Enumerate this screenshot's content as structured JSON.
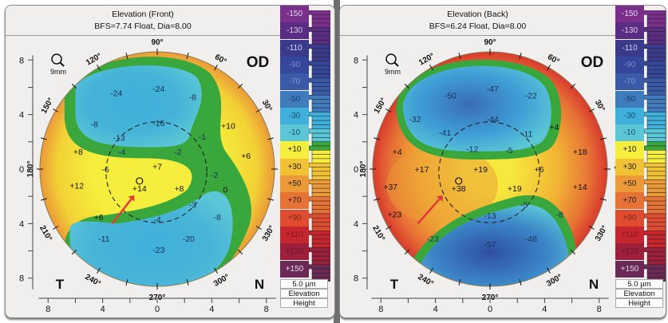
{
  "panels": [
    {
      "title": "Elevation (Front)",
      "subtitle": "BFS=7.74 Float, Dia=8.00",
      "eye": "OD",
      "zoom_label": "9mm",
      "side_left": "T",
      "side_right": "N",
      "angle_labels": [
        "90°",
        "60°",
        "30°",
        "0°",
        "330°",
        "300°",
        "270°",
        "240°",
        "210°",
        "180°",
        "150°",
        "120°"
      ],
      "axis_ticks": [
        "8",
        "4",
        "0",
        "4",
        "8"
      ],
      "values": [
        {
          "text": "-24",
          "mx": -3.0,
          "my": 5.6
        },
        {
          "text": "-24",
          "mx": 0.1,
          "my": 5.9
        },
        {
          "text": "-8",
          "mx": 2.6,
          "my": 5.3
        },
        {
          "text": "-8",
          "mx": -4.6,
          "my": 3.3
        },
        {
          "text": "-16",
          "mx": 0.1,
          "my": 3.4
        },
        {
          "text": "-13",
          "mx": -2.8,
          "my": 2.3
        },
        {
          "text": "-1",
          "mx": 3.3,
          "my": 2.4
        },
        {
          "text": "+10",
          "mx": 5.2,
          "my": 3.2
        },
        {
          "text": "+8",
          "mx": -5.8,
          "my": 1.3
        },
        {
          "text": "-4",
          "mx": -2.6,
          "my": 1.3
        },
        {
          "text": "-2",
          "mx": 1.5,
          "my": 1.3
        },
        {
          "text": "+6",
          "mx": 6.5,
          "my": 1.0
        },
        {
          "text": "-2",
          "mx": 4.2,
          "my": -0.4
        },
        {
          "text": "-6",
          "mx": -3.8,
          "my": 0.0
        },
        {
          "text": "+7",
          "mx": 0.0,
          "my": 0.2
        },
        {
          "text": "+12",
          "mx": -5.9,
          "my": -1.2
        },
        {
          "text": "+14",
          "mx": -1.3,
          "my": -1.4
        },
        {
          "text": "+8",
          "mx": 1.6,
          "my": -1.4
        },
        {
          "text": "0",
          "mx": 5.0,
          "my": -1.5
        },
        {
          "text": "-3",
          "mx": 2.6,
          "my": -2.6
        },
        {
          "text": "+6",
          "mx": -4.3,
          "my": -3.5
        },
        {
          "text": "-4",
          "mx": 0.0,
          "my": -3.7
        },
        {
          "text": "-8",
          "mx": 4.4,
          "my": -3.5
        },
        {
          "text": "-11",
          "mx": -3.9,
          "my": -5.1
        },
        {
          "text": "-23",
          "mx": 0.1,
          "my": -5.9
        },
        {
          "text": "-20",
          "mx": 2.3,
          "my": -5.1
        }
      ]
    },
    {
      "title": "Elevation (Back)",
      "subtitle": "BFS=6.24 Float, Dia=8.00",
      "eye": "OD",
      "zoom_label": "9mm",
      "side_left": "T",
      "side_right": "N",
      "angle_labels": [
        "90°",
        "60°",
        "30°",
        "0°",
        "330°",
        "300°",
        "270°",
        "240°",
        "210°",
        "180°",
        "150°",
        "120°"
      ],
      "axis_ticks": [
        "8",
        "4",
        "0",
        "4",
        "8"
      ],
      "values": [
        {
          "text": "-50",
          "mx": -2.9,
          "my": 5.4
        },
        {
          "text": "-47",
          "mx": 0.2,
          "my": 5.9
        },
        {
          "text": "-22",
          "mx": 3.0,
          "my": 5.4
        },
        {
          "text": "-32",
          "mx": -5.5,
          "my": 3.7
        },
        {
          "text": "-44",
          "mx": 0.2,
          "my": 3.7
        },
        {
          "text": "-41",
          "mx": -3.3,
          "my": 2.7
        },
        {
          "text": "-11",
          "mx": 2.7,
          "my": 2.6
        },
        {
          "text": "+4",
          "mx": 4.7,
          "my": 3.1
        },
        {
          "text": "-12",
          "mx": -1.3,
          "my": 1.5
        },
        {
          "text": "-5",
          "mx": 1.4,
          "my": 1.4
        },
        {
          "text": "+18",
          "mx": 6.6,
          "my": 1.3
        },
        {
          "text": "+4",
          "mx": -6.8,
          "my": 1.3
        },
        {
          "text": "+17",
          "mx": -5.0,
          "my": 0.0
        },
        {
          "text": "+19",
          "mx": -0.7,
          "my": 0.0
        },
        {
          "text": "+6",
          "mx": 3.6,
          "my": 0.0
        },
        {
          "text": "+37",
          "mx": -7.3,
          "my": -1.3
        },
        {
          "text": "+38",
          "mx": -2.3,
          "my": -1.4
        },
        {
          "text": "+19",
          "mx": 1.8,
          "my": -1.4
        },
        {
          "text": "+14",
          "mx": 6.6,
          "my": -1.3
        },
        {
          "text": "-5",
          "mx": 2.5,
          "my": -2.6
        },
        {
          "text": "+23",
          "mx": -7.0,
          "my": -3.3
        },
        {
          "text": "-13",
          "mx": 0.0,
          "my": -3.4
        },
        {
          "text": "-8",
          "mx": 5.1,
          "my": -3.3
        },
        {
          "text": "-23",
          "mx": -4.2,
          "my": -5.1
        },
        {
          "text": "-57",
          "mx": 0.0,
          "my": -5.5
        },
        {
          "text": "-48",
          "mx": 3.0,
          "my": -5.1
        }
      ]
    }
  ],
  "color_scale": {
    "levels": [
      {
        "label": "-150",
        "color": "#7a2f8a",
        "text": "#e8d6ef"
      },
      {
        "label": "-130",
        "color": "#5b2c83",
        "text": "#d9cfe9"
      },
      {
        "label": "-110",
        "color": "#3a3a8c",
        "text": "#d6d8ef"
      },
      {
        "label": "-90",
        "color": "#34479a",
        "text": "#7d8cc8"
      },
      {
        "label": "-70",
        "color": "#3a5aa8",
        "text": "#7f97cf"
      },
      {
        "label": "-50",
        "color": "#3f7bbd",
        "text": "#1d3f6e"
      },
      {
        "label": "-30",
        "color": "#3fb0dc",
        "text": "#1d4f6e"
      },
      {
        "label": "-10",
        "color": "#5ac6d6",
        "text": "#1d4f6e"
      },
      {
        "label": "+10",
        "color": "#f6ee3c",
        "text": "#222"
      },
      {
        "label": "+30",
        "color": "#f2c235",
        "text": "#222"
      },
      {
        "label": "+50",
        "color": "#ec9a37",
        "text": "#222"
      },
      {
        "label": "+70",
        "color": "#e77235",
        "text": "#222"
      },
      {
        "label": "+90",
        "color": "#df4c2f",
        "text": "#7a2a1a"
      },
      {
        "label": "+110",
        "color": "#c8262f",
        "text": "#7a1a1a"
      },
      {
        "label": "+130",
        "color": "#9e1f3b",
        "text": "#6a1a2a"
      },
      {
        "label": "+150",
        "color": "#6a2a55",
        "text": "#e6d6e6"
      }
    ],
    "step": "5.0 µm",
    "mode_line1": "Elevation",
    "mode_line2": "Height"
  },
  "marker_color": "#e23a3a"
}
